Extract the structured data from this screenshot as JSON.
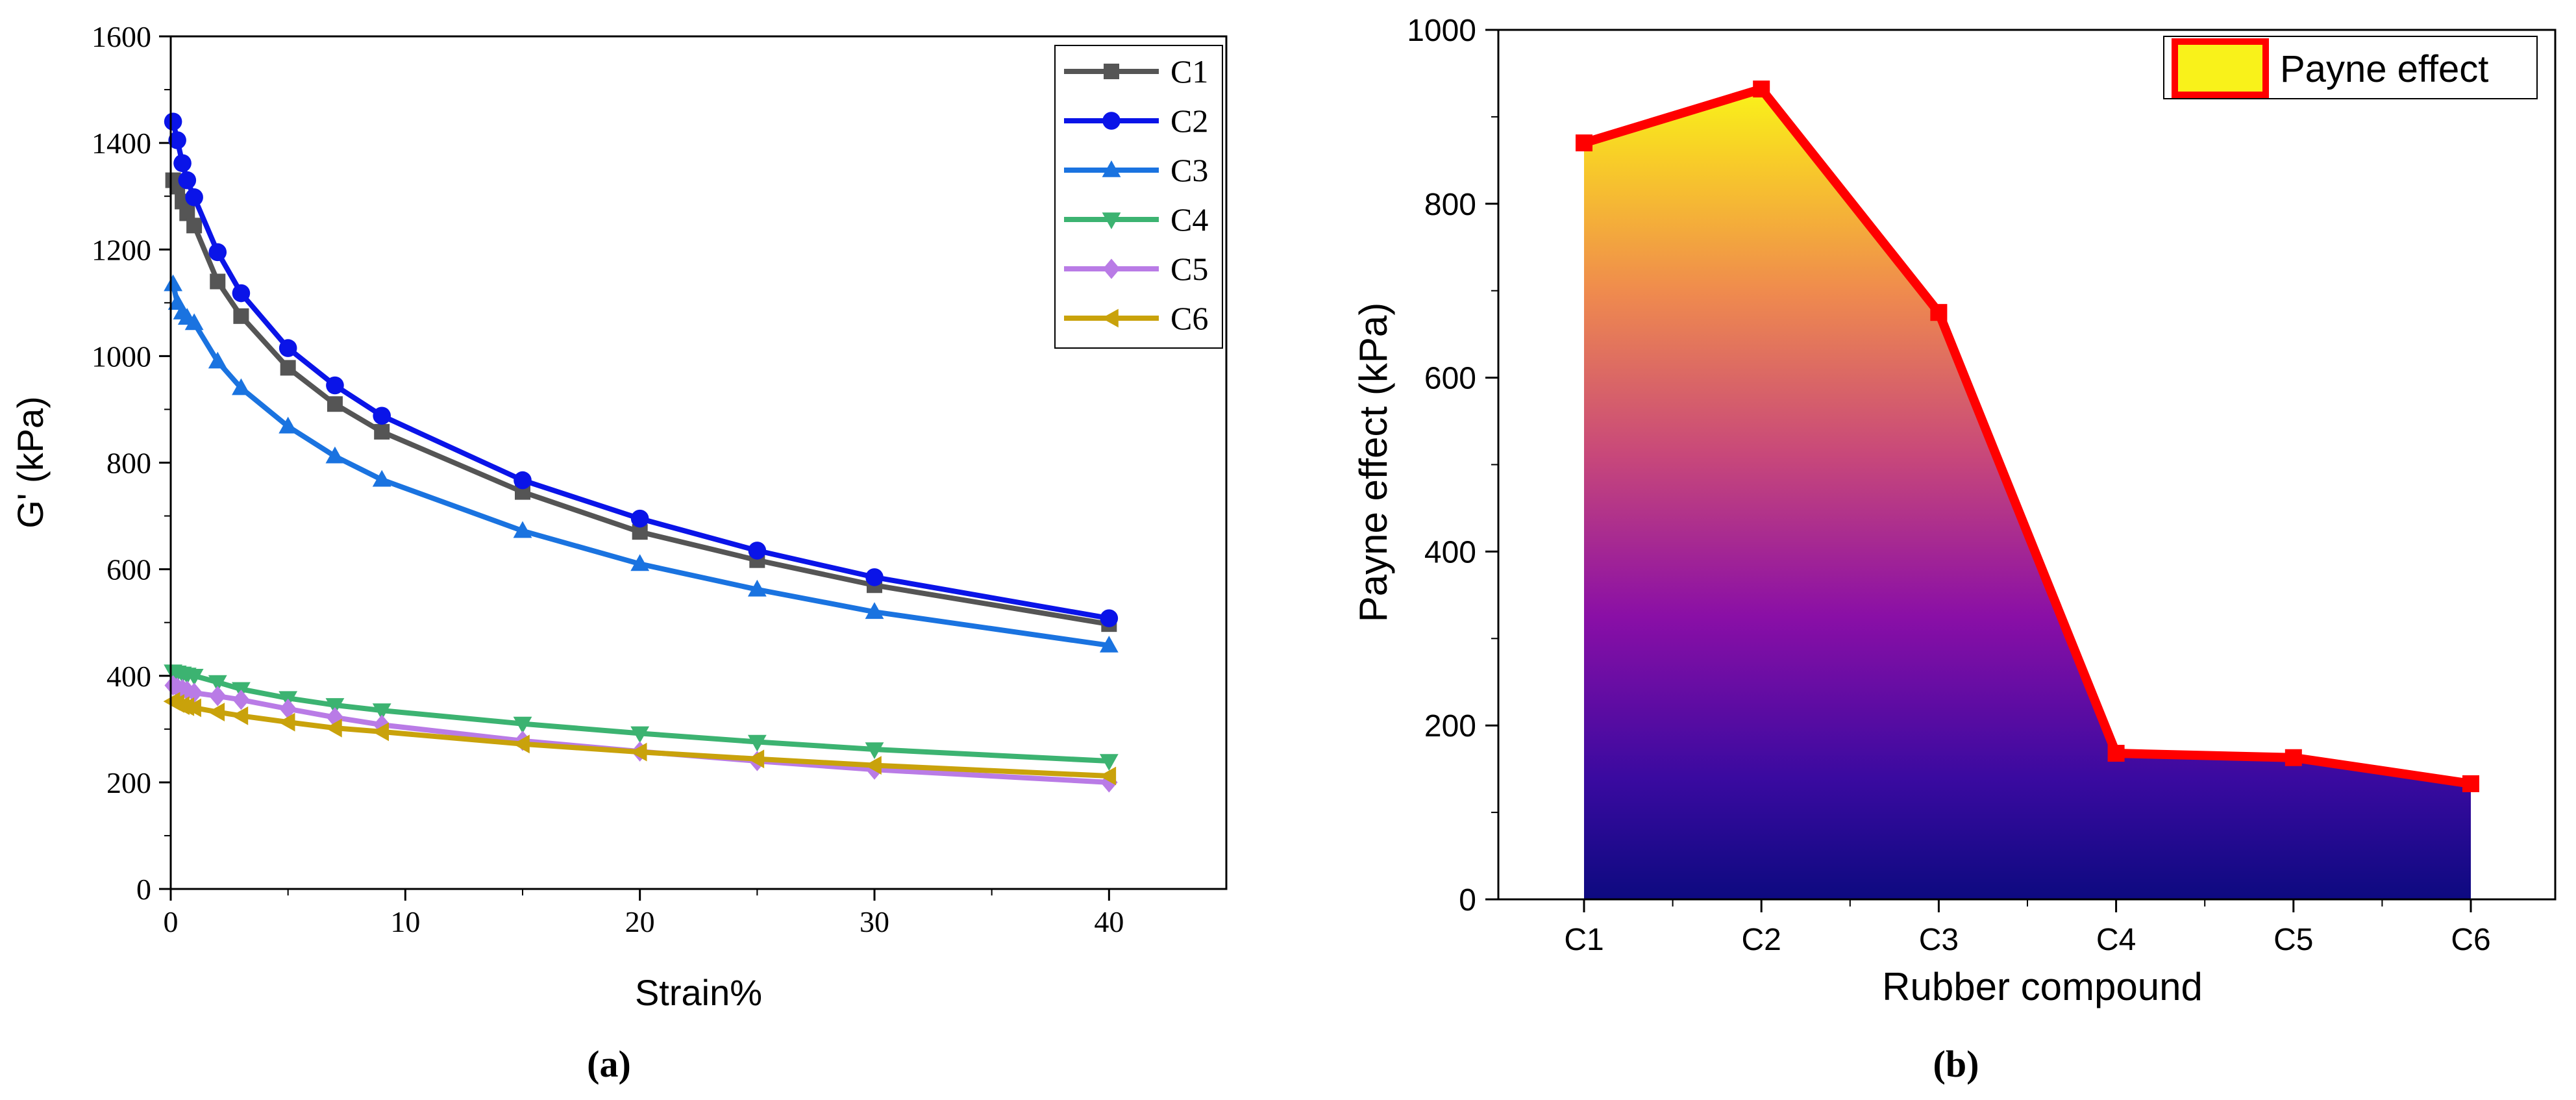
{
  "chart_data": [
    {
      "type": "line",
      "panel_label": "(a)",
      "xlabel": "Strain%",
      "ylabel": "G' (kPa)",
      "xlim": [
        0,
        45
      ],
      "ylim": [
        0,
        1600
      ],
      "xticks": [
        0,
        10,
        20,
        30,
        40
      ],
      "yticks": [
        0,
        200,
        400,
        600,
        800,
        1000,
        1200,
        1400,
        1600
      ],
      "x": [
        0.1,
        0.28,
        0.5,
        0.7,
        1,
        2,
        3,
        5,
        7,
        9,
        15,
        20,
        25,
        30,
        40
      ],
      "legend": "top-right",
      "series": [
        {
          "name": "C1",
          "marker": "square",
          "color": "#555555",
          "values": [
            1330,
            1318,
            1290,
            1268,
            1245,
            1140,
            1075,
            978,
            910,
            858,
            745,
            670,
            617,
            570,
            497
          ]
        },
        {
          "name": "C2",
          "marker": "circle",
          "color": "#0a14e8",
          "values": [
            1440,
            1405,
            1362,
            1330,
            1298,
            1195,
            1118,
            1015,
            945,
            888,
            767,
            695,
            635,
            585,
            508
          ]
        },
        {
          "name": "C3",
          "marker": "triangle-up",
          "color": "#1a73e0",
          "values": [
            1135,
            1100,
            1082,
            1072,
            1062,
            990,
            940,
            868,
            812,
            768,
            672,
            610,
            562,
            520,
            457
          ]
        },
        {
          "name": "C4",
          "marker": "triangle-down",
          "color": "#3cb371",
          "values": [
            408,
            406,
            404,
            402,
            400,
            388,
            375,
            358,
            345,
            335,
            310,
            292,
            276,
            262,
            240
          ]
        },
        {
          "name": "C5",
          "marker": "diamond",
          "color": "#b97be6",
          "values": [
            382,
            378,
            375,
            372,
            368,
            362,
            355,
            338,
            322,
            308,
            278,
            258,
            240,
            224,
            200
          ]
        },
        {
          "name": "C6",
          "marker": "triangle-left",
          "color": "#c9a20b",
          "values": [
            352,
            348,
            344,
            342,
            340,
            332,
            325,
            313,
            302,
            295,
            272,
            257,
            244,
            232,
            212
          ]
        }
      ]
    },
    {
      "type": "area",
      "panel_label": "(b)",
      "xlabel": "Rubber compound",
      "ylabel": "Payne effect (kPa)",
      "ylim": [
        0,
        1000
      ],
      "yticks": [
        0,
        200,
        400,
        600,
        800,
        1000
      ],
      "categories": [
        "C1",
        "C2",
        "C3",
        "C4",
        "C5",
        "C6"
      ],
      "legend": "top-right",
      "series": [
        {
          "name": "Payne effect",
          "color": "#ff0000",
          "values": [
            870,
            932,
            675,
            168,
            163,
            133
          ]
        }
      ]
    }
  ]
}
